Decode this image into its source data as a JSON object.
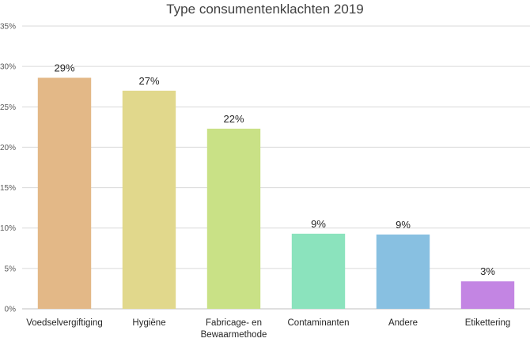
{
  "chart_data": {
    "type": "bar",
    "title": "Type consumentenklachten 2019",
    "xlabel": "",
    "ylabel": "",
    "ylim": [
      0,
      35
    ],
    "grid": true,
    "yticks": [
      "0%",
      "5%",
      "10%",
      "15%",
      "20%",
      "25%",
      "30%",
      "35%"
    ],
    "categories": [
      [
        "Voedselvergiftiging"
      ],
      [
        "Hygiëne"
      ],
      [
        "Fabricage- en",
        "Bewaarmethode"
      ],
      [
        "Contaminanten"
      ],
      [
        "Andere"
      ],
      [
        "Etikettering"
      ]
    ],
    "values": [
      28.6,
      27.0,
      22.3,
      9.3,
      9.2,
      3.4
    ],
    "data_labels": [
      "29%",
      "27%",
      "22%",
      "9%",
      "9%",
      "3%"
    ],
    "colors": [
      "#e3b887",
      "#e1d88c",
      "#c9e186",
      "#8be3bd",
      "#88c0e1",
      "#c385e3"
    ]
  }
}
